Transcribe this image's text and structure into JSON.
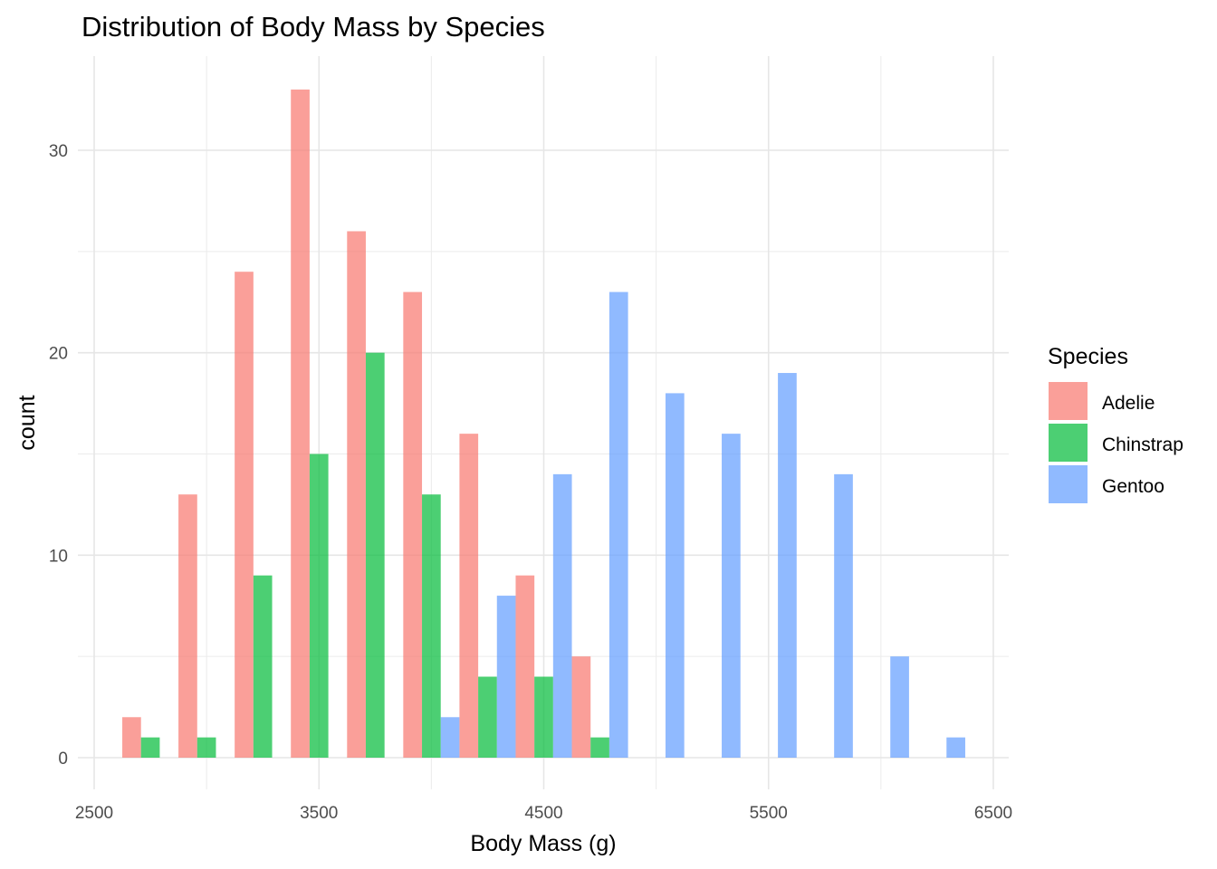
{
  "chart_data": {
    "type": "bar",
    "title": "Distribution of Body Mass by Species",
    "xlabel": "Body Mass (g)",
    "ylabel": "count",
    "xlim": [
      2500,
      6500
    ],
    "ylim": [
      0,
      33
    ],
    "x_ticks": [
      "2500",
      "3500",
      "4500",
      "5500",
      "6500"
    ],
    "y_ticks": [
      "0",
      "10",
      "20",
      "30"
    ],
    "bin_width": 250,
    "x": [
      2750,
      3000,
      3250,
      3500,
      3750,
      4000,
      4250,
      4500,
      4750,
      5000,
      5250,
      5500,
      5750,
      6000,
      6250
    ],
    "series": [
      {
        "name": "Adelie",
        "color": "#F8766D",
        "values": [
          2,
          13,
          24,
          33,
          26,
          23,
          16,
          9,
          5,
          0,
          0,
          0,
          0,
          0,
          0
        ]
      },
      {
        "name": "Chinstrap",
        "color": "#00BA38",
        "values": [
          1,
          1,
          9,
          15,
          20,
          13,
          4,
          4,
          1,
          0,
          0,
          0,
          0,
          0,
          0
        ]
      },
      {
        "name": "Gentoo",
        "color": "#619CFF",
        "values": [
          0,
          0,
          0,
          0,
          0,
          2,
          8,
          14,
          23,
          18,
          16,
          19,
          14,
          5,
          1
        ]
      }
    ],
    "grid": true,
    "legend": {
      "title": "Species",
      "position": "right"
    }
  }
}
